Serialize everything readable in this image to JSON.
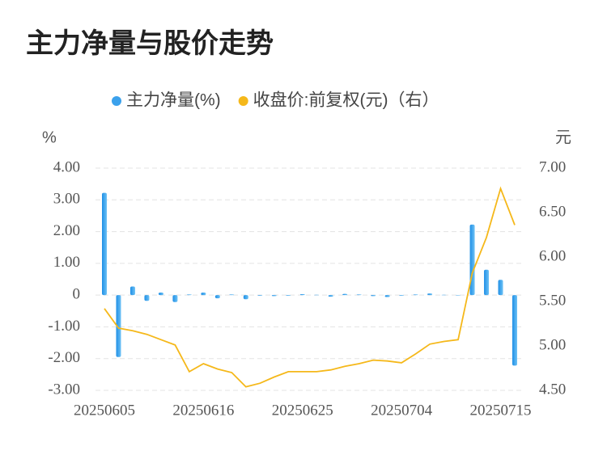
{
  "chart_data": {
    "type": "bar_line",
    "title": "主力净量与股价走势",
    "y_label": "%",
    "y2_label": "元",
    "categories": [
      "20250605",
      null,
      null,
      null,
      null,
      null,
      null,
      "20250616",
      null,
      null,
      null,
      null,
      null,
      null,
      "20250625",
      null,
      null,
      null,
      null,
      null,
      null,
      "20250704",
      null,
      null,
      null,
      null,
      null,
      null,
      "20250715",
      null
    ],
    "series": [
      {
        "name": "主力净量(%)",
        "type": "bar",
        "color": "#3ba1ec",
        "values": [
          3.22,
          -1.95,
          0.27,
          -0.18,
          0.08,
          -0.22,
          0.02,
          0.08,
          -0.1,
          0.02,
          -0.13,
          -0.02,
          -0.03,
          -0.02,
          0.03,
          0.01,
          -0.05,
          0.04,
          0.02,
          -0.03,
          -0.06,
          -0.02,
          0.02,
          0.05,
          0.01,
          0.0,
          2.22,
          0.8,
          0.48,
          -2.22
        ]
      },
      {
        "name": "收盘价:前复权(元)（右）",
        "type": "line",
        "axis": "y2",
        "color": "#f5b81a",
        "values": [
          5.42,
          5.2,
          5.17,
          5.13,
          5.07,
          5.01,
          4.71,
          4.8,
          4.74,
          4.7,
          4.54,
          4.58,
          4.65,
          4.71,
          4.71,
          4.71,
          4.73,
          4.77,
          4.8,
          4.84,
          4.83,
          4.81,
          4.91,
          5.02,
          5.05,
          5.07,
          5.82,
          6.22,
          6.77,
          6.36
        ]
      }
    ],
    "ylim": [
      -3,
      4
    ],
    "yticks": [
      {
        "value": 4,
        "label": "4.00"
      },
      {
        "value": 3,
        "label": "3.00"
      },
      {
        "value": 2,
        "label": "2.00"
      },
      {
        "value": 1,
        "label": "1.00"
      },
      0,
      {
        "value": -1,
        "label": "-1.00"
      },
      {
        "value": -2,
        "label": "-2.00"
      },
      {
        "value": -3,
        "label": "-3.00"
      }
    ],
    "y2lim": [
      4.5,
      7
    ],
    "y2ticks": [
      {
        "value": 7,
        "label": "7.00"
      },
      {
        "value": 6.5,
        "label": "6.50"
      },
      {
        "value": 6,
        "label": "6.00"
      },
      {
        "value": 5.5,
        "label": "5.50"
      },
      {
        "value": 5,
        "label": "5.00"
      },
      {
        "value": 4.5,
        "label": "4.50"
      }
    ],
    "grid": true
  }
}
